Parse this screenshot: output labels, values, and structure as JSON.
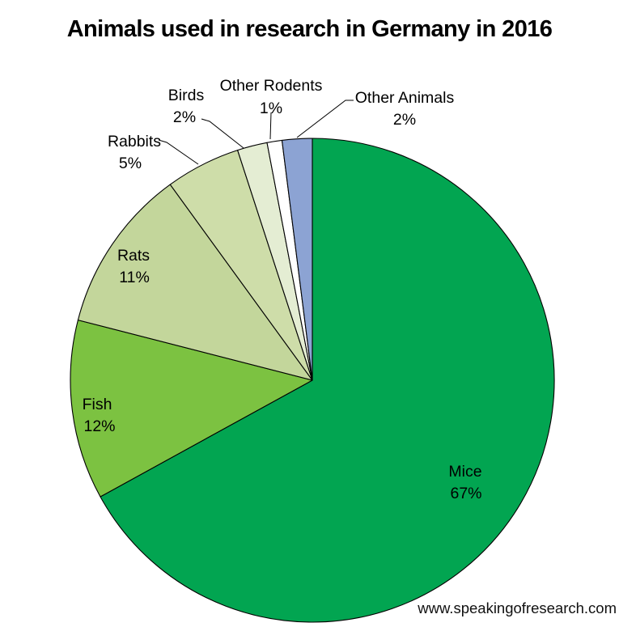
{
  "chart_data": {
    "type": "pie",
    "title": "Animals used in research in Germany in 2016",
    "categories": [
      "Mice",
      "Fish",
      "Rats",
      "Rabbits",
      "Birds",
      "Other Rodents",
      "Other Animals"
    ],
    "values": [
      67,
      12,
      11,
      5,
      2,
      1,
      2
    ],
    "colors": [
      "#02A551",
      "#7CC241",
      "#C3D69B",
      "#CEDDA9",
      "#E4EDD3",
      "#FFFFFF",
      "#8CA3D3"
    ],
    "start_angle_deg": 0,
    "direction": "clockwise",
    "legend_position": "none",
    "label_format": "category + percent",
    "slice_border_color": "#000000"
  },
  "watermark": "www.speakingofresearch.com"
}
